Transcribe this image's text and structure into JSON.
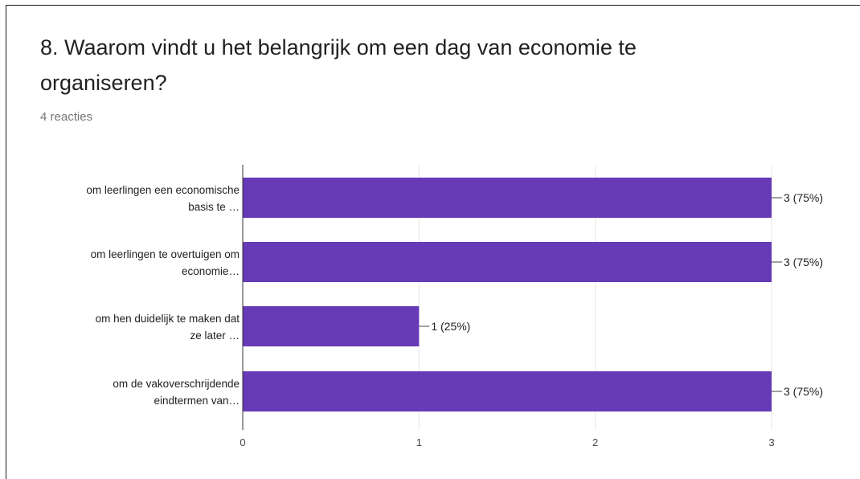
{
  "question": {
    "title": "8. Waarom vindt u het belangrijk om een dag van economie te organiseren?",
    "responses": "4 reacties"
  },
  "colors": {
    "bar": "#673ab7",
    "grid": "#e6e6e6",
    "axis": "#333333"
  },
  "chart_data": {
    "type": "bar",
    "orientation": "horizontal",
    "categories": [
      [
        "om leerlingen een economische",
        "basis te …"
      ],
      [
        "om leerlingen te overtuigen om",
        "economie…"
      ],
      [
        "om hen duidelijk te maken dat",
        "ze later …"
      ],
      [
        "om de vakoverschrijdende",
        "eindtermen van…"
      ]
    ],
    "values": [
      3,
      3,
      1,
      3
    ],
    "data_labels": [
      "3 (75%)",
      "3 (75%)",
      "1 (25%)",
      "3 (75%)"
    ],
    "xlim": [
      0,
      3
    ],
    "x_ticks": [
      0,
      1,
      2,
      3
    ],
    "grid": true,
    "xlabel": "",
    "ylabel": ""
  }
}
